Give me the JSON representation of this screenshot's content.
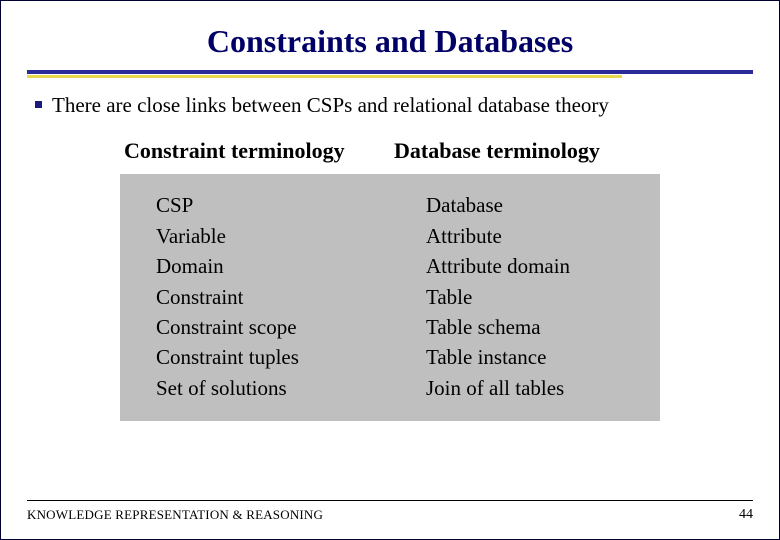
{
  "title": "Constraints and Databases",
  "bullet": "There are close links between CSPs and relational database theory",
  "headers": {
    "left": "Constraint terminology",
    "right": "Database terminology"
  },
  "rows": {
    "left": [
      "CSP",
      "Variable",
      "Domain",
      "Constraint",
      "Constraint scope",
      "Constraint tuples",
      "Set of solutions"
    ],
    "right": [
      "Database",
      "Attribute",
      "Attribute domain",
      "Table",
      "Table schema",
      "Table instance",
      "Join of all tables"
    ]
  },
  "footer": "KNOWLEDGE REPRESENTATION & REASONING",
  "page": "44",
  "colors": {
    "title": "#000066",
    "rule_blue": "#2a2a99",
    "rule_yellow": "#e6d84f",
    "body_bg": "#bfbfbf"
  }
}
